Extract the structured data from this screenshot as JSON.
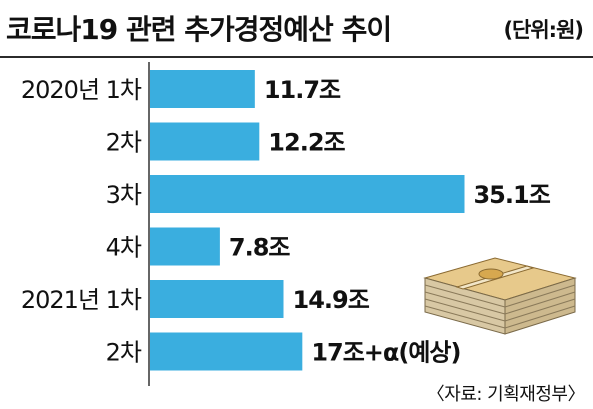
{
  "title": "코로나19 관련 추가경정예산 추이",
  "unit": "(단위:원)",
  "source": "〈자료: 기획재정부〉",
  "colors": {
    "bar": "#3aaedf",
    "axis": "#333333"
  },
  "chart_data": {
    "type": "bar",
    "orientation": "horizontal",
    "categories": [
      "2020년 1차",
      "2차",
      "3차",
      "4차",
      "2021년 1차",
      "2차"
    ],
    "values": [
      11.7,
      12.2,
      35.1,
      7.8,
      14.9,
      17
    ],
    "value_labels": [
      "11.7조",
      "12.2조",
      "35.1조",
      "7.8조",
      "14.9조",
      "17조+α(예상)"
    ],
    "unit": "조",
    "grid": false,
    "legend": "none"
  }
}
